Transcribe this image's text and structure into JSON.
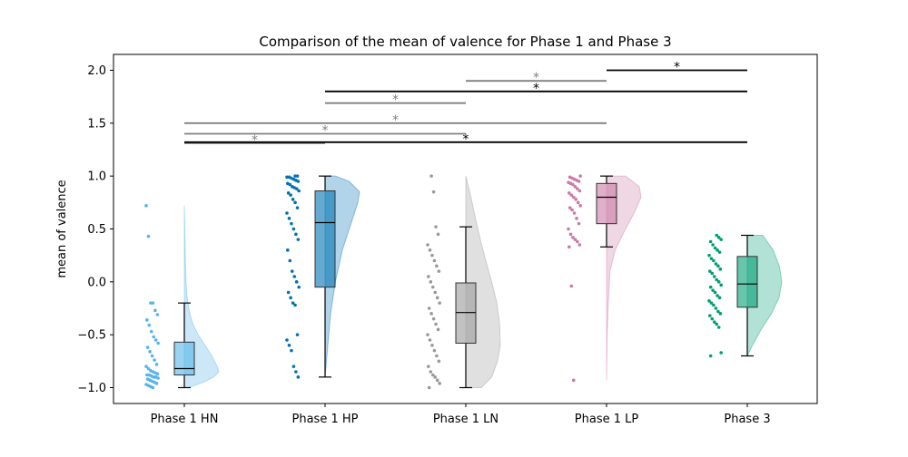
{
  "chart_data": {
    "type": "raincloud",
    "title": "Comparison of the mean of valence for Phase 1 and Phase 3",
    "xlabel": "",
    "ylabel": "mean of valence",
    "ylim": [
      -1.15,
      2.15
    ],
    "yticks": [
      -1.0,
      -0.5,
      0.0,
      0.5,
      1.0,
      1.5,
      2.0
    ],
    "ytick_labels": [
      "−1.0",
      "−0.5",
      "0.0",
      "0.5",
      "1.0",
      "1.5",
      "2.0"
    ],
    "grid": false,
    "categories": [
      "Phase 1 HN",
      "Phase 1 HP",
      "Phase 1 LN",
      "Phase 1 LP",
      "Phase 3"
    ],
    "series": [
      {
        "color": "#56b4e9",
        "box": {
          "whisker_low": -1.0,
          "q1": -0.88,
          "median": -0.82,
          "q3": -0.57,
          "whisker_high": -0.2
        },
        "density": [
          [
            -1.0,
            0.12
          ],
          [
            -0.95,
            0.55
          ],
          [
            -0.9,
            0.85
          ],
          [
            -0.85,
            1.0
          ],
          [
            -0.8,
            0.95
          ],
          [
            -0.7,
            0.8
          ],
          [
            -0.6,
            0.6
          ],
          [
            -0.5,
            0.4
          ],
          [
            -0.4,
            0.25
          ],
          [
            -0.3,
            0.16
          ],
          [
            -0.2,
            0.1
          ],
          [
            -0.1,
            0.07
          ],
          [
            0.0,
            0.05
          ],
          [
            0.2,
            0.03
          ],
          [
            0.4,
            0.02
          ],
          [
            0.6,
            0.01
          ],
          [
            0.72,
            0.0
          ]
        ],
        "points": [
          0.72,
          0.43,
          -0.2,
          -0.2,
          -0.27,
          -0.31,
          -0.36,
          -0.41,
          -0.47,
          -0.52,
          -0.55,
          -0.58,
          -0.62,
          -0.66,
          -0.7,
          -0.74,
          -0.78,
          -0.8,
          -0.82,
          -0.84,
          -0.85,
          -0.86,
          -0.87,
          -0.88,
          -0.88,
          -0.89,
          -0.9,
          -0.9,
          -0.91,
          -0.92,
          -0.93,
          -0.94,
          -0.95,
          -0.96,
          -0.97,
          -0.98,
          -0.99,
          -1.0
        ]
      },
      {
        "color": "#0072b2",
        "box": {
          "whisker_low": -0.9,
          "q1": -0.05,
          "median": 0.56,
          "q3": 0.86,
          "whisker_high": 1.0
        },
        "density": [
          [
            -0.9,
            0.0
          ],
          [
            -0.6,
            0.08
          ],
          [
            -0.3,
            0.16
          ],
          [
            0.0,
            0.3
          ],
          [
            0.3,
            0.5
          ],
          [
            0.55,
            0.75
          ],
          [
            0.75,
            0.95
          ],
          [
            0.85,
            1.0
          ],
          [
            0.95,
            0.7
          ],
          [
            1.0,
            0.3
          ]
        ],
        "points": [
          1.0,
          1.0,
          0.99,
          0.99,
          0.98,
          0.97,
          0.96,
          0.95,
          0.93,
          0.92,
          0.9,
          0.89,
          0.88,
          0.86,
          0.84,
          0.82,
          0.78,
          0.75,
          0.7,
          0.65,
          0.6,
          0.55,
          0.5,
          0.45,
          0.4,
          0.3,
          0.2,
          0.1,
          0.05,
          0.0,
          -0.05,
          -0.1,
          -0.15,
          -0.2,
          -0.22,
          -0.5,
          -0.55,
          -0.6,
          -0.65,
          -0.8,
          -0.85,
          -0.9
        ]
      },
      {
        "color": "#999999",
        "box": {
          "whisker_low": -1.0,
          "q1": -0.58,
          "median": -0.29,
          "q3": -0.01,
          "whisker_high": 0.52
        },
        "density": [
          [
            -1.0,
            0.45
          ],
          [
            -0.9,
            0.75
          ],
          [
            -0.75,
            0.92
          ],
          [
            -0.6,
            1.0
          ],
          [
            -0.4,
            0.98
          ],
          [
            -0.2,
            0.9
          ],
          [
            0.0,
            0.75
          ],
          [
            0.2,
            0.58
          ],
          [
            0.4,
            0.42
          ],
          [
            0.6,
            0.28
          ],
          [
            0.8,
            0.15
          ],
          [
            1.0,
            0.0
          ]
        ],
        "points": [
          1.0,
          0.85,
          0.52,
          0.45,
          0.35,
          0.3,
          0.25,
          0.2,
          0.15,
          0.1,
          0.05,
          0.0,
          -0.05,
          -0.1,
          -0.15,
          -0.2,
          -0.25,
          -0.3,
          -0.35,
          -0.4,
          -0.45,
          -0.5,
          -0.55,
          -0.6,
          -0.65,
          -0.7,
          -0.75,
          -0.8,
          -0.85,
          -0.88,
          -0.9,
          -0.93,
          -0.96,
          -1.0
        ]
      },
      {
        "color": "#cc79a7",
        "box": {
          "whisker_low": 0.33,
          "q1": 0.55,
          "median": 0.8,
          "q3": 0.93,
          "whisker_high": 1.0
        },
        "density": [
          [
            -0.93,
            0.0
          ],
          [
            -0.5,
            0.02
          ],
          [
            -0.2,
            0.05
          ],
          [
            0.1,
            0.1
          ],
          [
            0.3,
            0.25
          ],
          [
            0.5,
            0.55
          ],
          [
            0.65,
            0.8
          ],
          [
            0.8,
            1.0
          ],
          [
            0.9,
            0.95
          ],
          [
            1.0,
            0.55
          ]
        ],
        "points": [
          1.0,
          0.99,
          0.98,
          0.97,
          0.96,
          0.95,
          0.94,
          0.93,
          0.92,
          0.9,
          0.88,
          0.86,
          0.84,
          0.82,
          0.8,
          0.78,
          0.75,
          0.72,
          0.7,
          0.68,
          0.65,
          0.6,
          0.55,
          0.5,
          0.45,
          0.42,
          0.4,
          0.38,
          0.35,
          0.33,
          -0.04,
          -0.93
        ]
      },
      {
        "color": "#009e73",
        "box": {
          "whisker_low": -0.7,
          "q1": -0.24,
          "median": -0.02,
          "q3": 0.24,
          "whisker_high": 0.44
        },
        "density": [
          [
            -0.7,
            0.0
          ],
          [
            -0.6,
            0.15
          ],
          [
            -0.45,
            0.4
          ],
          [
            -0.3,
            0.7
          ],
          [
            -0.15,
            0.92
          ],
          [
            0.0,
            1.0
          ],
          [
            0.15,
            0.93
          ],
          [
            0.3,
            0.75
          ],
          [
            0.44,
            0.45
          ]
        ],
        "points": [
          0.44,
          0.42,
          0.4,
          0.38,
          0.35,
          0.32,
          0.3,
          0.28,
          0.25,
          0.22,
          0.2,
          0.17,
          0.15,
          0.12,
          0.1,
          0.08,
          0.05,
          0.02,
          0.0,
          -0.03,
          -0.05,
          -0.08,
          -0.1,
          -0.13,
          -0.15,
          -0.18,
          -0.2,
          -0.22,
          -0.25,
          -0.28,
          -0.3,
          -0.32,
          -0.35,
          -0.38,
          -0.4,
          -0.43,
          -0.67,
          -0.7
        ]
      }
    ],
    "significance_brackets": [
      {
        "from": 0,
        "to": 1,
        "y": 1.31,
        "label": "*",
        "color": "#808080"
      },
      {
        "from": 0,
        "to": 4,
        "y": 1.32,
        "label": "*",
        "color": "#000000"
      },
      {
        "from": 0,
        "to": 2,
        "y": 1.4,
        "label": "*",
        "color": "#808080"
      },
      {
        "from": 0,
        "to": 3,
        "y": 1.5,
        "label": "*",
        "color": "#808080"
      },
      {
        "from": 1,
        "to": 2,
        "y": 1.69,
        "label": "*",
        "color": "#808080"
      },
      {
        "from": 1,
        "to": 4,
        "y": 1.8,
        "label": "*",
        "color": "#000000"
      },
      {
        "from": 2,
        "to": 3,
        "y": 1.9,
        "label": "*",
        "color": "#808080"
      },
      {
        "from": 3,
        "to": 4,
        "y": 2.0,
        "label": "*",
        "color": "#000000"
      }
    ]
  }
}
